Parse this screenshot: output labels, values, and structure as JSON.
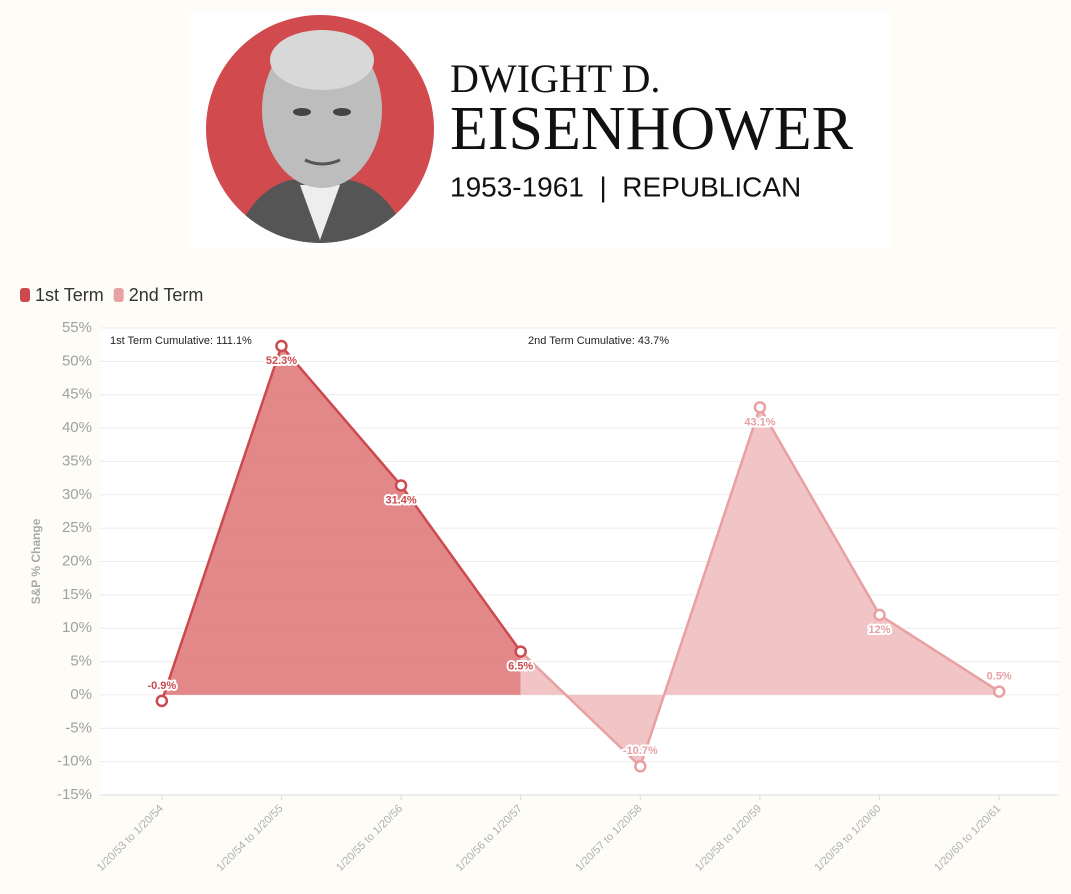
{
  "header": {
    "name_first": "DWIGHT D.",
    "name_last": "EISENHOWER",
    "subtitle": "1953-1961  |  REPUBLICAN"
  },
  "chart_data": {
    "type": "area",
    "y_label": "S&P % Change",
    "annotations": [
      "1st Term Cumulative: 111.1%",
      "2nd Term Cumulative: 43.7%"
    ],
    "categories": [
      "1/20/53 to 1/20/54",
      "1/20/54 to 1/20/55",
      "1/20/55 to 1/20/56",
      "1/20/56 to 1/20/57",
      "1/20/57 to 1/20/58",
      "1/20/58 to 1/20/59",
      "1/20/59 to 1/20/60",
      "1/20/60 to 1/20/61"
    ],
    "series": [
      {
        "name": "1st Term",
        "color": "#cc4a4e",
        "fill": "#e07b7c",
        "values": [
          -0.9,
          52.3,
          31.4,
          6.5,
          null,
          null,
          null,
          null
        ],
        "value_labels": [
          "-0.9%",
          "52.3%",
          "31.4%",
          "6.5%",
          null,
          null,
          null,
          null
        ]
      },
      {
        "name": "2nd Term",
        "color": "#e8a0a2",
        "fill": "#f0bfc0",
        "values": [
          null,
          null,
          null,
          null,
          -10.7,
          43.1,
          12,
          0.5
        ],
        "value_labels": [
          null,
          null,
          null,
          null,
          "-10.7%",
          "43.1%",
          "12%",
          "0.5%"
        ]
      }
    ],
    "ylim": [
      -15,
      55
    ],
    "yticks": [
      {
        "value": -15,
        "label": "-15%"
      },
      {
        "value": -10,
        "label": "-10%"
      },
      {
        "value": -5,
        "label": "-5%"
      },
      {
        "value": 0,
        "label": "0%"
      },
      {
        "value": 5,
        "label": "5%"
      },
      {
        "value": 10,
        "label": "10%"
      },
      {
        "value": 15,
        "label": "15%"
      },
      {
        "value": 20,
        "label": "20%"
      },
      {
        "value": 25,
        "label": "25%"
      },
      {
        "value": 30,
        "label": "30%"
      },
      {
        "value": 35,
        "label": "35%"
      },
      {
        "value": 40,
        "label": "40%"
      },
      {
        "value": 45,
        "label": "45%"
      },
      {
        "value": 50,
        "label": "50%"
      },
      {
        "value": 55,
        "label": "55%"
      }
    ],
    "grid": true
  }
}
